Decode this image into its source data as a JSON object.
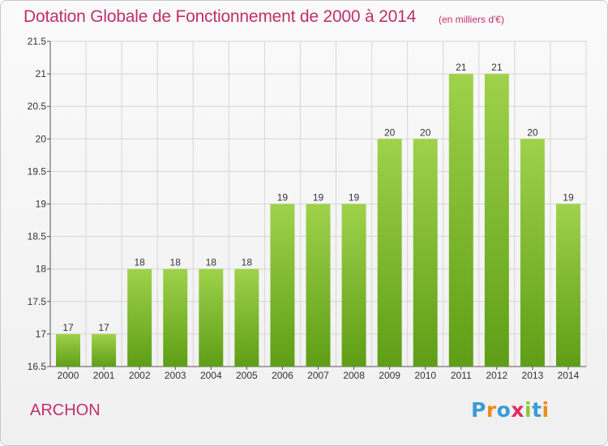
{
  "title": "Dotation Globale de Fonctionnement de 2000 à 2014",
  "unit_note": "(en milliers d'€)",
  "commune": "ARCHON",
  "logo": {
    "letters": [
      "P",
      "r",
      "o",
      "x",
      "i",
      "t",
      "i"
    ],
    "colors": [
      "#3a9bd5",
      "#f08a1c",
      "#3a9bd5",
      "#e02d5c",
      "#8cc63f",
      "#3a9bd5",
      "#f08a1c"
    ]
  },
  "colors": {
    "title": "#c0306a",
    "bar_light": "#9fd24b",
    "bar_dark": "#5e9e16",
    "grid": "#d6d6d6"
  },
  "chart_data": {
    "type": "bar",
    "categories": [
      "2000",
      "2001",
      "2002",
      "2003",
      "2004",
      "2005",
      "2006",
      "2007",
      "2008",
      "2009",
      "2010",
      "2011",
      "2012",
      "2013",
      "2014"
    ],
    "values": [
      17,
      17,
      18,
      18,
      18,
      18,
      19,
      19,
      19,
      20,
      20,
      21,
      21,
      20,
      19
    ],
    "data_labels": [
      "17",
      "17",
      "18",
      "18",
      "18",
      "18",
      "19",
      "19",
      "19",
      "20",
      "20",
      "21",
      "21",
      "20",
      "19"
    ],
    "ylim": [
      16.5,
      21.5
    ],
    "yticks": [
      16.5,
      17,
      17.5,
      18,
      18.5,
      19,
      19.5,
      20,
      20.5,
      21,
      21.5
    ],
    "ytick_labels": [
      "16.5",
      "17",
      "17.5",
      "18",
      "18.5",
      "19",
      "19.5",
      "20",
      "20.5",
      "21",
      "21.5"
    ],
    "grid": true,
    "xlabel": "",
    "ylabel": ""
  }
}
